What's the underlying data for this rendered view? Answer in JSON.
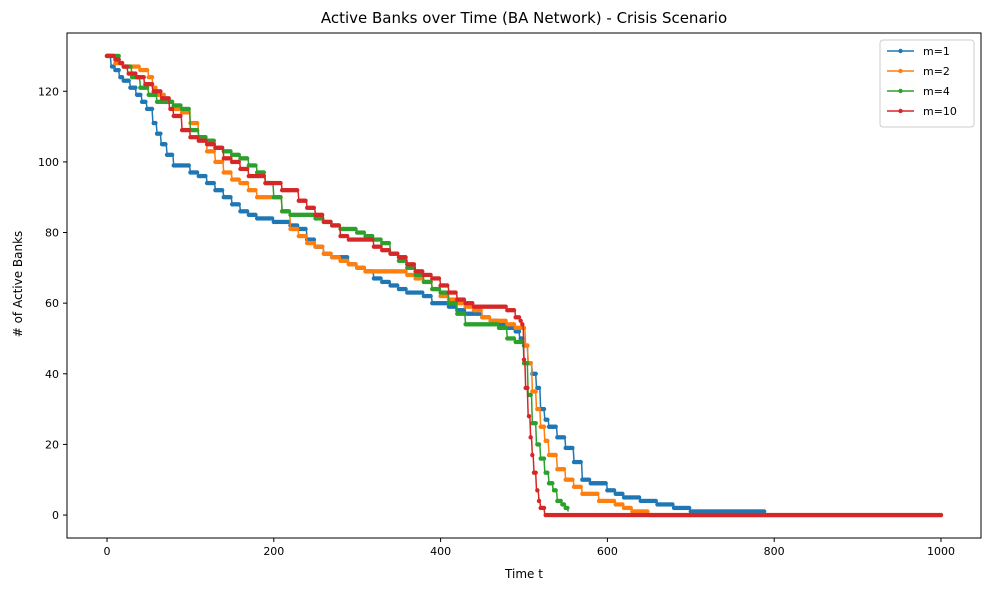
{
  "chart_data": {
    "type": "line",
    "title": "Active Banks over Time (BA Network) - Crisis Scenario",
    "xlabel": "Time t",
    "ylabel": "# of Active Banks",
    "xlim": [
      -48,
      1048
    ],
    "ylim": [
      -6.5,
      136.5
    ],
    "xticks": [
      0,
      200,
      400,
      600,
      800,
      1000
    ],
    "yticks": [
      0,
      20,
      40,
      60,
      80,
      100,
      120
    ],
    "grid": false,
    "legend_position": "top-right",
    "series": [
      {
        "name": "m=1",
        "color": "#1f77b4",
        "x_end": 788,
        "points": [
          [
            0,
            130
          ],
          [
            5,
            127
          ],
          [
            10,
            126
          ],
          [
            15,
            124
          ],
          [
            20,
            123
          ],
          [
            28,
            121
          ],
          [
            35,
            119
          ],
          [
            42,
            117
          ],
          [
            48,
            115
          ],
          [
            55,
            111
          ],
          [
            60,
            108
          ],
          [
            65,
            105
          ],
          [
            72,
            102
          ],
          [
            80,
            99
          ],
          [
            90,
            99
          ],
          [
            100,
            97
          ],
          [
            110,
            96
          ],
          [
            120,
            94
          ],
          [
            130,
            92
          ],
          [
            140,
            90
          ],
          [
            150,
            88
          ],
          [
            160,
            86
          ],
          [
            170,
            85
          ],
          [
            180,
            84
          ],
          [
            190,
            84
          ],
          [
            200,
            83
          ],
          [
            210,
            83
          ],
          [
            220,
            82
          ],
          [
            230,
            81
          ],
          [
            240,
            78
          ],
          [
            250,
            76
          ],
          [
            260,
            74
          ],
          [
            270,
            73
          ],
          [
            280,
            73
          ],
          [
            290,
            71
          ],
          [
            300,
            70
          ],
          [
            310,
            69
          ],
          [
            320,
            67
          ],
          [
            330,
            66
          ],
          [
            340,
            65
          ],
          [
            350,
            64
          ],
          [
            360,
            63
          ],
          [
            370,
            63
          ],
          [
            380,
            62
          ],
          [
            390,
            60
          ],
          [
            400,
            60
          ],
          [
            410,
            59
          ],
          [
            420,
            58
          ],
          [
            430,
            57
          ],
          [
            440,
            57
          ],
          [
            450,
            56
          ],
          [
            460,
            55
          ],
          [
            470,
            54
          ],
          [
            480,
            53
          ],
          [
            490,
            52
          ],
          [
            495,
            50
          ],
          [
            500,
            48
          ],
          [
            505,
            43
          ],
          [
            510,
            40
          ],
          [
            515,
            36
          ],
          [
            520,
            30
          ],
          [
            525,
            27
          ],
          [
            530,
            25
          ],
          [
            540,
            22
          ],
          [
            550,
            19
          ],
          [
            560,
            15
          ],
          [
            570,
            10
          ],
          [
            580,
            9
          ],
          [
            590,
            9
          ],
          [
            600,
            7
          ],
          [
            610,
            6
          ],
          [
            620,
            5
          ],
          [
            630,
            5
          ],
          [
            640,
            4
          ],
          [
            650,
            4
          ],
          [
            660,
            3
          ],
          [
            670,
            3
          ],
          [
            680,
            2
          ],
          [
            690,
            2
          ],
          [
            700,
            1
          ],
          [
            788,
            1
          ]
        ]
      },
      {
        "name": "m=2",
        "color": "#ff7f0e",
        "x_end": 1000,
        "points": [
          [
            0,
            130
          ],
          [
            10,
            128
          ],
          [
            20,
            127
          ],
          [
            30,
            127
          ],
          [
            40,
            126
          ],
          [
            50,
            124
          ],
          [
            55,
            121
          ],
          [
            60,
            119
          ],
          [
            70,
            117
          ],
          [
            80,
            115
          ],
          [
            90,
            114
          ],
          [
            100,
            111
          ],
          [
            110,
            107
          ],
          [
            120,
            103
          ],
          [
            130,
            100
          ],
          [
            140,
            97
          ],
          [
            150,
            95
          ],
          [
            160,
            94
          ],
          [
            170,
            92
          ],
          [
            180,
            90
          ],
          [
            190,
            90
          ],
          [
            200,
            90
          ],
          [
            210,
            86
          ],
          [
            220,
            81
          ],
          [
            230,
            79
          ],
          [
            240,
            77
          ],
          [
            250,
            76
          ],
          [
            260,
            74
          ],
          [
            270,
            73
          ],
          [
            280,
            72
          ],
          [
            290,
            71
          ],
          [
            300,
            70
          ],
          [
            310,
            69
          ],
          [
            320,
            69
          ],
          [
            330,
            69
          ],
          [
            340,
            69
          ],
          [
            350,
            69
          ],
          [
            360,
            68
          ],
          [
            370,
            67
          ],
          [
            380,
            66
          ],
          [
            390,
            64
          ],
          [
            400,
            62
          ],
          [
            410,
            61
          ],
          [
            420,
            60
          ],
          [
            430,
            59
          ],
          [
            440,
            58
          ],
          [
            450,
            56
          ],
          [
            460,
            55
          ],
          [
            470,
            55
          ],
          [
            480,
            54
          ],
          [
            490,
            53
          ],
          [
            500,
            53
          ],
          [
            502,
            48
          ],
          [
            505,
            43
          ],
          [
            510,
            35
          ],
          [
            515,
            30
          ],
          [
            520,
            25
          ],
          [
            525,
            21
          ],
          [
            530,
            17
          ],
          [
            540,
            13
          ],
          [
            550,
            10
          ],
          [
            560,
            8
          ],
          [
            570,
            6
          ],
          [
            580,
            6
          ],
          [
            590,
            4
          ],
          [
            600,
            4
          ],
          [
            610,
            3
          ],
          [
            620,
            2
          ],
          [
            630,
            1
          ],
          [
            640,
            1
          ],
          [
            650,
            0
          ],
          [
            1000,
            0
          ]
        ]
      },
      {
        "name": "m=4",
        "color": "#2ca02c",
        "x_end": 553,
        "points": [
          [
            0,
            130
          ],
          [
            10,
            130
          ],
          [
            15,
            128
          ],
          [
            20,
            127
          ],
          [
            30,
            124
          ],
          [
            40,
            121
          ],
          [
            50,
            119
          ],
          [
            60,
            117
          ],
          [
            70,
            117
          ],
          [
            80,
            116
          ],
          [
            90,
            115
          ],
          [
            100,
            109
          ],
          [
            110,
            107
          ],
          [
            120,
            106
          ],
          [
            130,
            104
          ],
          [
            140,
            103
          ],
          [
            150,
            102
          ],
          [
            160,
            101
          ],
          [
            170,
            99
          ],
          [
            180,
            97
          ],
          [
            190,
            94
          ],
          [
            200,
            90
          ],
          [
            210,
            86
          ],
          [
            220,
            85
          ],
          [
            230,
            85
          ],
          [
            240,
            85
          ],
          [
            250,
            84
          ],
          [
            260,
            83
          ],
          [
            270,
            82
          ],
          [
            280,
            81
          ],
          [
            290,
            81
          ],
          [
            300,
            80
          ],
          [
            310,
            79
          ],
          [
            320,
            78
          ],
          [
            330,
            77
          ],
          [
            340,
            74
          ],
          [
            350,
            72
          ],
          [
            360,
            70
          ],
          [
            370,
            68
          ],
          [
            380,
            66
          ],
          [
            390,
            64
          ],
          [
            400,
            63
          ],
          [
            410,
            60
          ],
          [
            420,
            57
          ],
          [
            430,
            54
          ],
          [
            440,
            54
          ],
          [
            450,
            54
          ],
          [
            460,
            54
          ],
          [
            470,
            53
          ],
          [
            480,
            50
          ],
          [
            490,
            49
          ],
          [
            498,
            49
          ],
          [
            500,
            43
          ],
          [
            505,
            34
          ],
          [
            510,
            26
          ],
          [
            515,
            20
          ],
          [
            520,
            16
          ],
          [
            525,
            12
          ],
          [
            530,
            9
          ],
          [
            535,
            7
          ],
          [
            540,
            4
          ],
          [
            545,
            3
          ],
          [
            550,
            2
          ],
          [
            553,
            1
          ]
        ]
      },
      {
        "name": "m=10",
        "color": "#d62728",
        "x_end": 1000,
        "points": [
          [
            0,
            130
          ],
          [
            10,
            129
          ],
          [
            15,
            128
          ],
          [
            20,
            127
          ],
          [
            25,
            125
          ],
          [
            35,
            124
          ],
          [
            45,
            122
          ],
          [
            55,
            120
          ],
          [
            65,
            118
          ],
          [
            75,
            115
          ],
          [
            80,
            113
          ],
          [
            90,
            109
          ],
          [
            100,
            107
          ],
          [
            110,
            106
          ],
          [
            120,
            105
          ],
          [
            130,
            104
          ],
          [
            140,
            101
          ],
          [
            150,
            100
          ],
          [
            160,
            98
          ],
          [
            170,
            96
          ],
          [
            180,
            96
          ],
          [
            190,
            94
          ],
          [
            200,
            94
          ],
          [
            210,
            92
          ],
          [
            220,
            92
          ],
          [
            230,
            89
          ],
          [
            240,
            87
          ],
          [
            250,
            85
          ],
          [
            260,
            83
          ],
          [
            270,
            82
          ],
          [
            280,
            79
          ],
          [
            290,
            78
          ],
          [
            300,
            78
          ],
          [
            310,
            78
          ],
          [
            320,
            76
          ],
          [
            330,
            75
          ],
          [
            340,
            74
          ],
          [
            350,
            73
          ],
          [
            360,
            71
          ],
          [
            370,
            69
          ],
          [
            380,
            68
          ],
          [
            390,
            67
          ],
          [
            400,
            65
          ],
          [
            410,
            63
          ],
          [
            420,
            61
          ],
          [
            430,
            60
          ],
          [
            440,
            59
          ],
          [
            450,
            59
          ],
          [
            460,
            59
          ],
          [
            470,
            59
          ],
          [
            480,
            58
          ],
          [
            490,
            56
          ],
          [
            495,
            55
          ],
          [
            498,
            54
          ],
          [
            500,
            44
          ],
          [
            502,
            36
          ],
          [
            505,
            28
          ],
          [
            508,
            22
          ],
          [
            510,
            17
          ],
          [
            512,
            12
          ],
          [
            515,
            7
          ],
          [
            518,
            4
          ],
          [
            520,
            2
          ],
          [
            525,
            0
          ],
          [
            1000,
            0
          ]
        ]
      }
    ]
  }
}
